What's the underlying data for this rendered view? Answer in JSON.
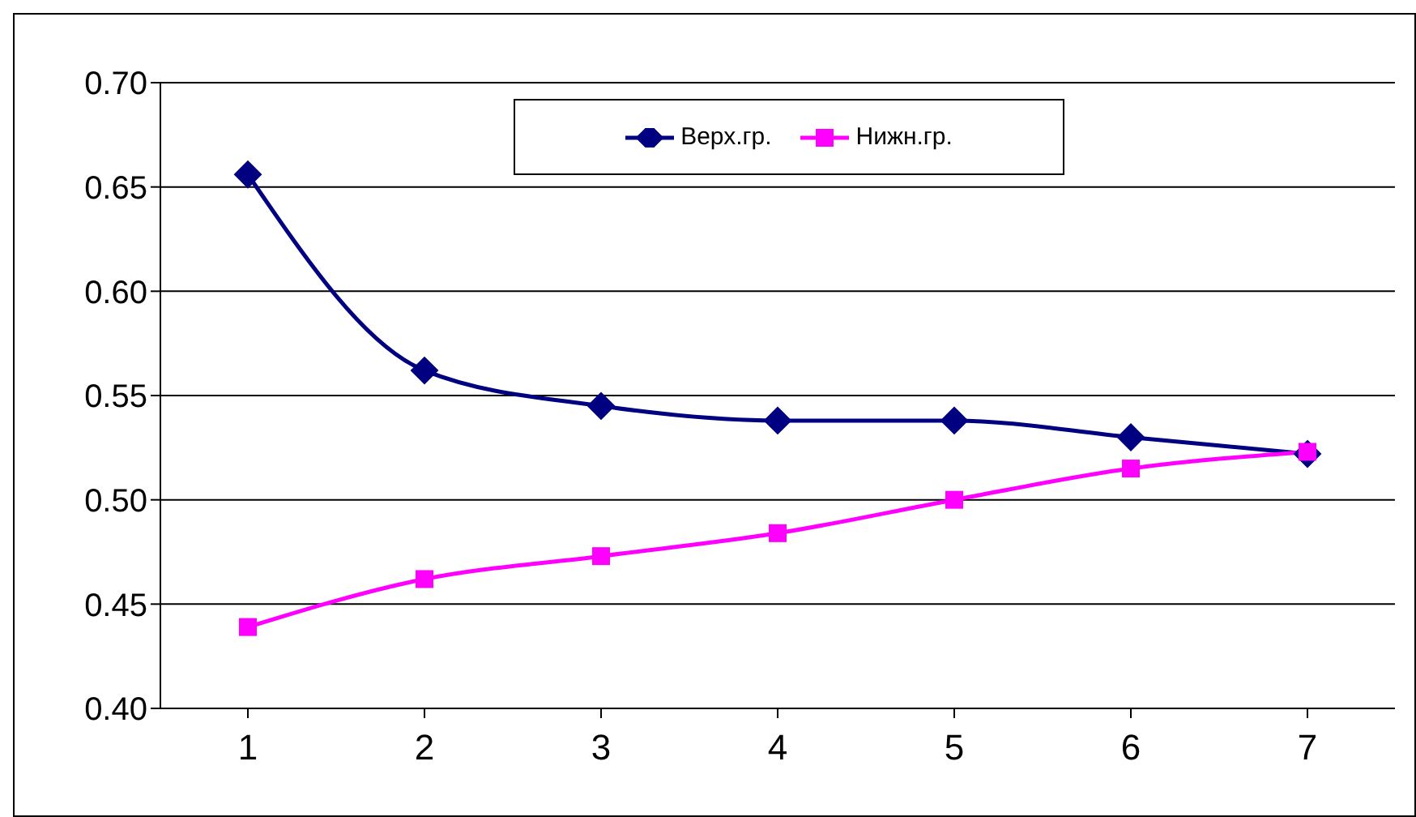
{
  "chart_data": {
    "type": "line",
    "categories": [
      "1",
      "2",
      "3",
      "4",
      "5",
      "6",
      "7"
    ],
    "series": [
      {
        "name": "Верх.гр.",
        "color": "#000080",
        "marker": "diamond",
        "values": [
          0.656,
          0.562,
          0.545,
          0.538,
          0.538,
          0.53,
          0.522
        ]
      },
      {
        "name": "Нижн.гр.",
        "color": "#ff00ff",
        "marker": "square",
        "values": [
          0.439,
          0.462,
          0.473,
          0.484,
          0.5,
          0.515,
          0.523
        ]
      }
    ],
    "ylim": [
      0.4,
      0.7
    ],
    "yticks": [
      {
        "value": 0.4,
        "label": "0.40"
      },
      {
        "value": 0.45,
        "label": "0.45"
      },
      {
        "value": 0.5,
        "label": "0.50"
      },
      {
        "value": 0.55,
        "label": "0.55"
      },
      {
        "value": 0.6,
        "label": "0.60"
      },
      {
        "value": 0.65,
        "label": "0.65"
      },
      {
        "value": 0.7,
        "label": "0.70"
      }
    ],
    "grid": "y",
    "legend": "top",
    "line_style": "solid"
  }
}
